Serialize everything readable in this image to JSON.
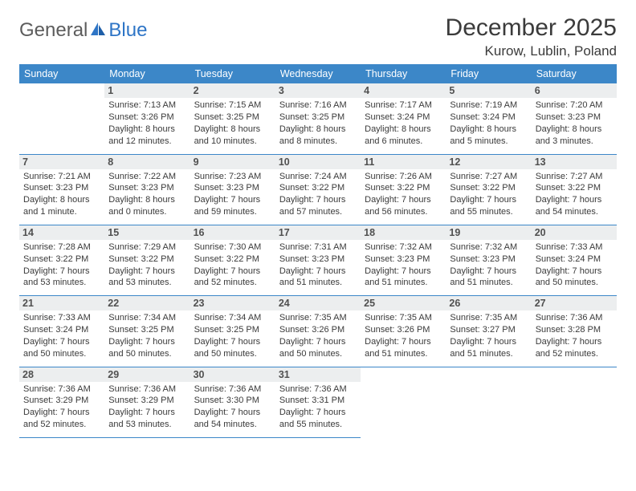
{
  "logo": {
    "part1": "General",
    "part2": "Blue"
  },
  "title": "December 2025",
  "location": "Kurow, Lublin, Poland",
  "colors": {
    "header_bg": "#3c87c8",
    "header_text": "#ffffff",
    "daynum_bg": "#eceeef",
    "daynum_text": "#505050",
    "body_text": "#3a3a3a",
    "rule": "#3c87c8",
    "logo_gray": "#5c5c5c",
    "logo_blue": "#2e75c6"
  },
  "day_headers": [
    "Sunday",
    "Monday",
    "Tuesday",
    "Wednesday",
    "Thursday",
    "Friday",
    "Saturday"
  ],
  "weeks": [
    [
      {
        "n": "",
        "sr": "",
        "ss": "",
        "dl": ""
      },
      {
        "n": "1",
        "sr": "Sunrise: 7:13 AM",
        "ss": "Sunset: 3:26 PM",
        "dl": "Daylight: 8 hours and 12 minutes."
      },
      {
        "n": "2",
        "sr": "Sunrise: 7:15 AM",
        "ss": "Sunset: 3:25 PM",
        "dl": "Daylight: 8 hours and 10 minutes."
      },
      {
        "n": "3",
        "sr": "Sunrise: 7:16 AM",
        "ss": "Sunset: 3:25 PM",
        "dl": "Daylight: 8 hours and 8 minutes."
      },
      {
        "n": "4",
        "sr": "Sunrise: 7:17 AM",
        "ss": "Sunset: 3:24 PM",
        "dl": "Daylight: 8 hours and 6 minutes."
      },
      {
        "n": "5",
        "sr": "Sunrise: 7:19 AM",
        "ss": "Sunset: 3:24 PM",
        "dl": "Daylight: 8 hours and 5 minutes."
      },
      {
        "n": "6",
        "sr": "Sunrise: 7:20 AM",
        "ss": "Sunset: 3:23 PM",
        "dl": "Daylight: 8 hours and 3 minutes."
      }
    ],
    [
      {
        "n": "7",
        "sr": "Sunrise: 7:21 AM",
        "ss": "Sunset: 3:23 PM",
        "dl": "Daylight: 8 hours and 1 minute."
      },
      {
        "n": "8",
        "sr": "Sunrise: 7:22 AM",
        "ss": "Sunset: 3:23 PM",
        "dl": "Daylight: 8 hours and 0 minutes."
      },
      {
        "n": "9",
        "sr": "Sunrise: 7:23 AM",
        "ss": "Sunset: 3:23 PM",
        "dl": "Daylight: 7 hours and 59 minutes."
      },
      {
        "n": "10",
        "sr": "Sunrise: 7:24 AM",
        "ss": "Sunset: 3:22 PM",
        "dl": "Daylight: 7 hours and 57 minutes."
      },
      {
        "n": "11",
        "sr": "Sunrise: 7:26 AM",
        "ss": "Sunset: 3:22 PM",
        "dl": "Daylight: 7 hours and 56 minutes."
      },
      {
        "n": "12",
        "sr": "Sunrise: 7:27 AM",
        "ss": "Sunset: 3:22 PM",
        "dl": "Daylight: 7 hours and 55 minutes."
      },
      {
        "n": "13",
        "sr": "Sunrise: 7:27 AM",
        "ss": "Sunset: 3:22 PM",
        "dl": "Daylight: 7 hours and 54 minutes."
      }
    ],
    [
      {
        "n": "14",
        "sr": "Sunrise: 7:28 AM",
        "ss": "Sunset: 3:22 PM",
        "dl": "Daylight: 7 hours and 53 minutes."
      },
      {
        "n": "15",
        "sr": "Sunrise: 7:29 AM",
        "ss": "Sunset: 3:22 PM",
        "dl": "Daylight: 7 hours and 53 minutes."
      },
      {
        "n": "16",
        "sr": "Sunrise: 7:30 AM",
        "ss": "Sunset: 3:22 PM",
        "dl": "Daylight: 7 hours and 52 minutes."
      },
      {
        "n": "17",
        "sr": "Sunrise: 7:31 AM",
        "ss": "Sunset: 3:23 PM",
        "dl": "Daylight: 7 hours and 51 minutes."
      },
      {
        "n": "18",
        "sr": "Sunrise: 7:32 AM",
        "ss": "Sunset: 3:23 PM",
        "dl": "Daylight: 7 hours and 51 minutes."
      },
      {
        "n": "19",
        "sr": "Sunrise: 7:32 AM",
        "ss": "Sunset: 3:23 PM",
        "dl": "Daylight: 7 hours and 51 minutes."
      },
      {
        "n": "20",
        "sr": "Sunrise: 7:33 AM",
        "ss": "Sunset: 3:24 PM",
        "dl": "Daylight: 7 hours and 50 minutes."
      }
    ],
    [
      {
        "n": "21",
        "sr": "Sunrise: 7:33 AM",
        "ss": "Sunset: 3:24 PM",
        "dl": "Daylight: 7 hours and 50 minutes."
      },
      {
        "n": "22",
        "sr": "Sunrise: 7:34 AM",
        "ss": "Sunset: 3:25 PM",
        "dl": "Daylight: 7 hours and 50 minutes."
      },
      {
        "n": "23",
        "sr": "Sunrise: 7:34 AM",
        "ss": "Sunset: 3:25 PM",
        "dl": "Daylight: 7 hours and 50 minutes."
      },
      {
        "n": "24",
        "sr": "Sunrise: 7:35 AM",
        "ss": "Sunset: 3:26 PM",
        "dl": "Daylight: 7 hours and 50 minutes."
      },
      {
        "n": "25",
        "sr": "Sunrise: 7:35 AM",
        "ss": "Sunset: 3:26 PM",
        "dl": "Daylight: 7 hours and 51 minutes."
      },
      {
        "n": "26",
        "sr": "Sunrise: 7:35 AM",
        "ss": "Sunset: 3:27 PM",
        "dl": "Daylight: 7 hours and 51 minutes."
      },
      {
        "n": "27",
        "sr": "Sunrise: 7:36 AM",
        "ss": "Sunset: 3:28 PM",
        "dl": "Daylight: 7 hours and 52 minutes."
      }
    ],
    [
      {
        "n": "28",
        "sr": "Sunrise: 7:36 AM",
        "ss": "Sunset: 3:29 PM",
        "dl": "Daylight: 7 hours and 52 minutes."
      },
      {
        "n": "29",
        "sr": "Sunrise: 7:36 AM",
        "ss": "Sunset: 3:29 PM",
        "dl": "Daylight: 7 hours and 53 minutes."
      },
      {
        "n": "30",
        "sr": "Sunrise: 7:36 AM",
        "ss": "Sunset: 3:30 PM",
        "dl": "Daylight: 7 hours and 54 minutes."
      },
      {
        "n": "31",
        "sr": "Sunrise: 7:36 AM",
        "ss": "Sunset: 3:31 PM",
        "dl": "Daylight: 7 hours and 55 minutes."
      },
      {
        "n": "",
        "sr": "",
        "ss": "",
        "dl": ""
      },
      {
        "n": "",
        "sr": "",
        "ss": "",
        "dl": ""
      },
      {
        "n": "",
        "sr": "",
        "ss": "",
        "dl": ""
      }
    ]
  ]
}
